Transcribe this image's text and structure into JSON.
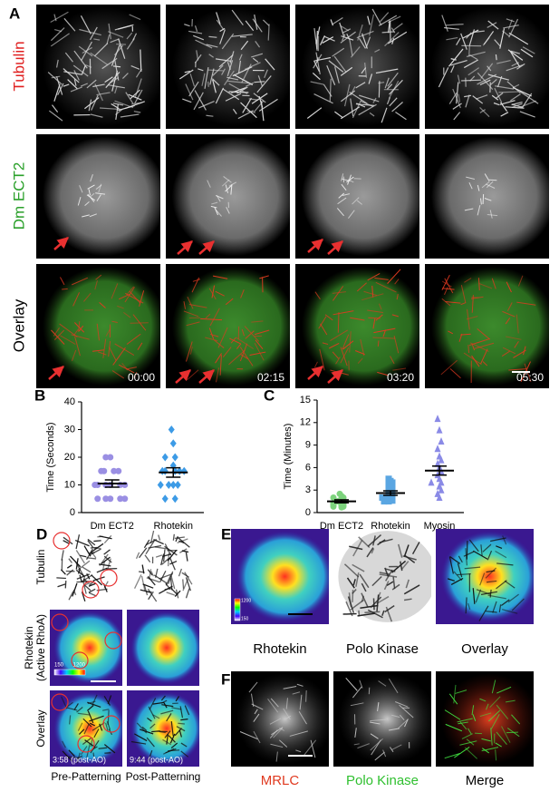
{
  "panel_labels": [
    "A",
    "B",
    "C",
    "D",
    "E",
    "F"
  ],
  "panel_a": {
    "row_labels": [
      "Tubulin",
      "Dm ECT2",
      "Overlay"
    ],
    "timestamps": [
      "00:00",
      "02:15",
      "03:20",
      "05:30"
    ]
  },
  "panel_d": {
    "row_labels": [
      [
        "Tubulin"
      ],
      [
        "Rhotekin",
        "(Active RhoA)"
      ],
      [
        "Overlay"
      ]
    ],
    "colorbar_ticks": [
      150,
      1200
    ],
    "timestamps": [
      "3:58 (post-AO)",
      "9:44 (post-AO)"
    ],
    "column_labels": [
      "Pre-Patterning",
      "Post-Patterning"
    ]
  },
  "panel_e": {
    "colorbar_ticks": [
      150,
      1200
    ],
    "column_labels": [
      "Rhotekin",
      "Polo Kinase",
      "Overlay"
    ]
  },
  "panel_f": {
    "column_labels": [
      "MRLC",
      "Polo Kinase",
      "Merge"
    ]
  },
  "chart_data": [
    {
      "type": "strip",
      "ylabel": "Time (Seconds)",
      "ylim": [
        0,
        40
      ],
      "yticks": [
        0,
        10,
        20,
        30,
        40
      ],
      "categories": [
        "Dm ECT2",
        "Rhotekin"
      ],
      "groups": [
        {
          "color": "#9a8fe3",
          "marker": "circle",
          "values": [
            20,
            20,
            15,
            15,
            15,
            15,
            10,
            10,
            10,
            10,
            10,
            10,
            5,
            5,
            5,
            5,
            5
          ],
          "mean": 10.5,
          "error": 1.3
        },
        {
          "color": "#3d9be6",
          "marker": "diamond",
          "values": [
            30,
            25,
            20,
            20,
            17,
            15,
            15,
            15,
            15,
            15,
            10,
            10,
            10,
            10,
            5,
            5
          ],
          "mean": 14.5,
          "error": 1.7
        }
      ]
    },
    {
      "type": "strip",
      "ylabel": "Time (Minutes)",
      "ylim": [
        0,
        15
      ],
      "yticks": [
        0,
        3,
        6,
        9,
        12,
        15
      ],
      "categories": [
        "Dm ECT2",
        "Rhotekin",
        "Myosin"
      ],
      "groups": [
        {
          "color": "#7dd37d",
          "marker": "circle",
          "values": [
            2.5,
            2.2,
            2,
            2,
            1.8,
            1.7,
            1.6,
            1.5,
            1.5,
            1.4,
            1.3,
            1.2,
            1.2,
            1.1,
            1,
            1,
            0.9,
            0.8,
            0.8,
            0.7
          ],
          "mean": 1.5,
          "error": 0.2
        },
        {
          "color": "#5aa6e2",
          "marker": "square",
          "values": [
            4.5,
            4.2,
            4,
            3.8,
            3.5,
            3.2,
            3,
            2.8,
            2.7,
            2.6,
            2.5,
            2.4,
            2.3,
            2.2,
            2,
            2,
            1.8,
            1.6,
            1.5,
            1.5
          ],
          "mean": 2.6,
          "error": 0.3
        },
        {
          "color": "#8a8ae6",
          "marker": "triangle",
          "values": [
            12.5,
            11,
            9.5,
            8.5,
            7.5,
            7,
            6.5,
            6,
            5.5,
            5,
            4.5,
            4,
            4,
            3.5,
            3,
            2.5,
            2
          ],
          "mean": 5.6,
          "error": 0.6
        }
      ]
    }
  ]
}
